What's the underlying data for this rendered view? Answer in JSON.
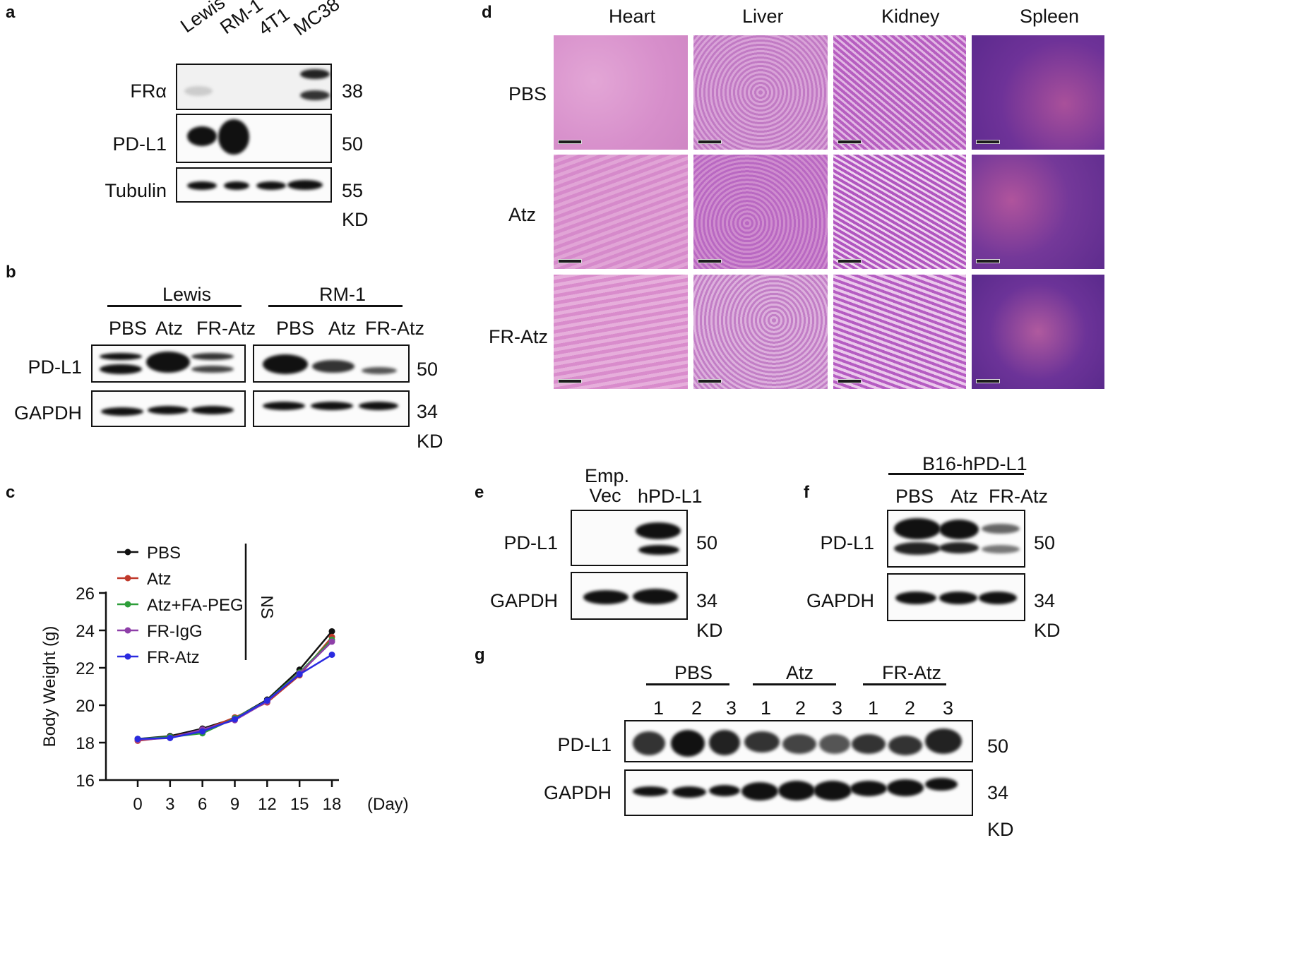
{
  "panels": {
    "a": "a",
    "b": "b",
    "c": "c",
    "d": "d",
    "e": "e",
    "f": "f",
    "g": "g"
  },
  "panel_a": {
    "lanes": [
      "Lewis",
      "RM-1",
      "4T1",
      "MC38"
    ],
    "rows": [
      {
        "label": "FRα",
        "kd": "38"
      },
      {
        "label": "PD-L1",
        "kd": "50"
      },
      {
        "label": "Tubulin",
        "kd": "55"
      }
    ],
    "kd_unit": "KD"
  },
  "panel_b": {
    "groups": [
      "Lewis",
      "RM-1"
    ],
    "lanes_left": [
      "PBS",
      "Atz",
      "FR-Atz"
    ],
    "lanes_right": [
      "PBS",
      "Atz",
      "FR-Atz"
    ],
    "rows": [
      {
        "label": "PD-L1",
        "kd": "50"
      },
      {
        "label": "GAPDH",
        "kd": "34"
      }
    ],
    "kd_unit": "KD"
  },
  "panel_d": {
    "columns": [
      "Heart",
      "Liver",
      "Kidney",
      "Spleen"
    ],
    "rows": [
      "PBS",
      "Atz",
      "FR-Atz"
    ],
    "tissue_colors": {
      "Heart": "#d98fcb",
      "Liver": "#c47ec7",
      "Kidney": "#bf6cc4",
      "Spleen": "#7a3a9c"
    }
  },
  "panel_e": {
    "lanes": [
      "Emp.\nVec",
      "hPD-L1"
    ],
    "rows": [
      {
        "label": "PD-L1",
        "kd": "50"
      },
      {
        "label": "GAPDH",
        "kd": "34"
      }
    ],
    "kd_unit": "KD"
  },
  "panel_f": {
    "group": "B16-hPD-L1",
    "lanes": [
      "PBS",
      "Atz",
      "FR-Atz"
    ],
    "rows": [
      {
        "label": "PD-L1",
        "kd": "50"
      },
      {
        "label": "GAPDH",
        "kd": "34"
      }
    ],
    "kd_unit": "KD"
  },
  "panel_g": {
    "groups": [
      "PBS",
      "Atz",
      "FR-Atz"
    ],
    "lane_numbers": [
      "1",
      "2",
      "3",
      "1",
      "2",
      "3",
      "1",
      "2",
      "3"
    ],
    "rows": [
      {
        "label": "PD-L1",
        "kd": "50"
      },
      {
        "label": "GAPDH",
        "kd": "34"
      }
    ],
    "kd_unit": "KD"
  },
  "chart_data": {
    "type": "line",
    "title": "",
    "xlabel": "(Day)",
    "ylabel": "Body Weight (g)",
    "x": [
      0,
      3,
      6,
      9,
      12,
      15,
      18
    ],
    "xticks": [
      "0",
      "3",
      "6",
      "9",
      "12",
      "15",
      "18"
    ],
    "yticks": [
      "16",
      "18",
      "20",
      "22",
      "24",
      "26"
    ],
    "ylim": [
      16,
      26
    ],
    "annotation": "NS",
    "legend_position": "top-left",
    "series": [
      {
        "name": "PBS",
        "color": "#111111",
        "values": [
          18.2,
          18.35,
          18.75,
          19.3,
          20.3,
          21.9,
          23.95
        ]
      },
      {
        "name": "Atz",
        "color": "#c0392b",
        "values": [
          18.1,
          18.3,
          18.65,
          19.35,
          20.15,
          21.6,
          23.65
        ]
      },
      {
        "name": "Atz+FA-PEG",
        "color": "#2e9e3a",
        "values": [
          18.2,
          18.3,
          18.5,
          19.3,
          20.25,
          21.75,
          23.5
        ]
      },
      {
        "name": "FR-IgG",
        "color": "#8e3fa8",
        "values": [
          18.15,
          18.25,
          18.7,
          19.2,
          20.2,
          21.7,
          23.4
        ]
      },
      {
        "name": "FR-Atz",
        "color": "#2a2ae0",
        "values": [
          18.2,
          18.25,
          18.6,
          19.25,
          20.25,
          21.65,
          22.7
        ]
      }
    ]
  }
}
